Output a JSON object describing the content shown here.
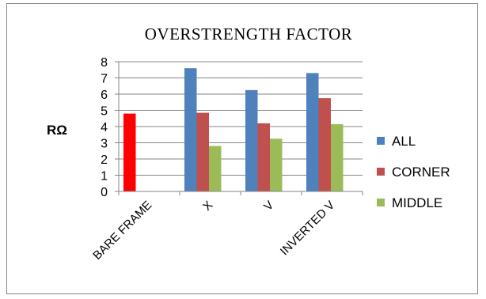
{
  "chart_data": {
    "type": "bar",
    "title": "OVERSTRENGTH FACTOR",
    "ylabel": "RΩ",
    "xlabel": "",
    "ylim": [
      0,
      8
    ],
    "yticks": [
      0,
      1,
      2,
      3,
      4,
      5,
      6,
      7,
      8
    ],
    "grid": true,
    "legend_position": "right",
    "categories": [
      "BARE FRAME",
      "X",
      "V",
      "INVERTED V"
    ],
    "bare_frame": {
      "value": 4.8,
      "color": "#ff0000"
    },
    "series": [
      {
        "name": "ALL",
        "color": "#4f81bd",
        "values": [
          null,
          7.6,
          6.25,
          7.3
        ]
      },
      {
        "name": "CORNER",
        "color": "#c0504d",
        "values": [
          null,
          4.85,
          4.2,
          5.75
        ]
      },
      {
        "name": "MIDDLE",
        "color": "#9bbb59",
        "values": [
          null,
          2.8,
          3.25,
          4.15
        ]
      }
    ]
  }
}
